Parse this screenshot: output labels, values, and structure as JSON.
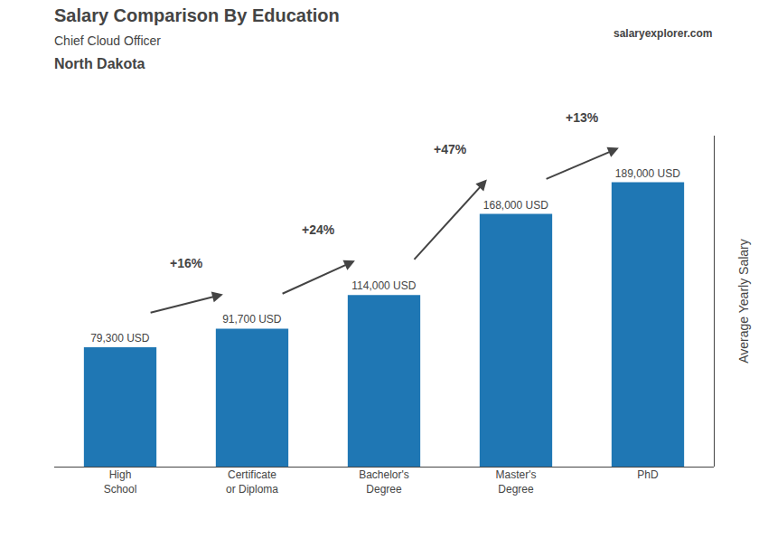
{
  "chart_data": {
    "type": "bar",
    "title": "Salary Comparison By Education",
    "subtitle": [
      "Chief Cloud Officer",
      "North Dakota"
    ],
    "ylabel": "Average Yearly Salary",
    "categories": [
      "High\nSchool",
      "Certificate\nor Diploma",
      "Bachelor's\nDegree",
      "Master's\nDegree",
      "PhD"
    ],
    "values": [
      79300,
      91700,
      114000,
      168000,
      189000
    ],
    "value_labels": [
      "79,300 USD",
      "91,700 USD",
      "114,000 USD",
      "168,000 USD",
      "189,000 USD"
    ],
    "data_labels": true,
    "ylim": [
      0,
      220000
    ],
    "yticks": [],
    "tick_labels": "x",
    "grid": false,
    "annotations": [
      {
        "text": "+16%",
        "from": 0,
        "to": 1
      },
      {
        "text": "+24%",
        "from": 1,
        "to": 2
      },
      {
        "text": "+47%",
        "from": 2,
        "to": 3
      },
      {
        "text": "+13%",
        "from": 3,
        "to": 4
      },
      {
        "text": "salaryexplorer.com"
      }
    ]
  }
}
